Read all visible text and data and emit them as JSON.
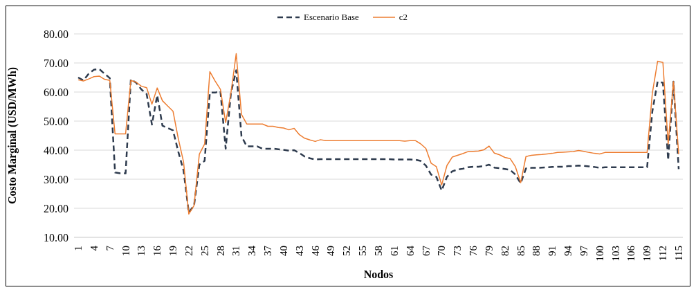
{
  "chart_data": {
    "type": "line",
    "xlabel": "Nodos",
    "ylabel": "Costo Marginal (USD/MWh)",
    "categories": [
      "1",
      null,
      null,
      "4",
      null,
      null,
      "7",
      null,
      null,
      "10",
      null,
      null,
      "13",
      null,
      null,
      "16",
      null,
      null,
      "19",
      null,
      null,
      "22",
      null,
      null,
      "25",
      null,
      null,
      "28",
      null,
      null,
      "31",
      null,
      null,
      "34",
      null,
      null,
      "37",
      null,
      null,
      "40",
      null,
      null,
      "43",
      null,
      null,
      "46",
      null,
      null,
      "49",
      null,
      null,
      "52",
      null,
      null,
      "55",
      null,
      null,
      "58",
      null,
      null,
      "61",
      null,
      null,
      "64",
      null,
      null,
      "67",
      null,
      null,
      "70",
      null,
      null,
      "73",
      null,
      null,
      "76",
      null,
      null,
      "79",
      null,
      null,
      "82",
      null,
      null,
      "85",
      null,
      null,
      "88",
      null,
      null,
      "91",
      null,
      null,
      "94",
      null,
      null,
      "97",
      null,
      null,
      "100",
      null,
      null,
      "103",
      null,
      null,
      "106",
      null,
      null,
      "109",
      null,
      null,
      "112",
      null,
      null,
      "115"
    ],
    "series": [
      {
        "name": "Escenario Base",
        "color": "#2e3b4e",
        "line_style": "dashed",
        "values": [
          65,
          64,
          66.3,
          67.7,
          67.9,
          66.3,
          64.8,
          32.3,
          32,
          32,
          64.4,
          63.2,
          60.9,
          59.3,
          48.8,
          58.9,
          48.4,
          47.6,
          46.8,
          39.5,
          33,
          18.5,
          21,
          35,
          36.3,
          59.8,
          59.8,
          60.3,
          40.5,
          59.7,
          67.5,
          44.8,
          41.3,
          41.3,
          41.3,
          40.5,
          40.5,
          40.5,
          40.3,
          40.1,
          39.8,
          40,
          39,
          37.8,
          37.2,
          36.8,
          36.9,
          36.9,
          36.9,
          36.9,
          36.9,
          36.9,
          36.9,
          36.9,
          36.9,
          36.9,
          36.9,
          36.9,
          36.9,
          36.9,
          36.8,
          36.8,
          36.8,
          36.8,
          36.7,
          36.3,
          34.7,
          31.6,
          30.8,
          26.1,
          30.8,
          32.7,
          33.3,
          33.6,
          34.1,
          34.3,
          34.3,
          34.5,
          35,
          34,
          33.8,
          33.5,
          33.2,
          31.6,
          28.6,
          33.7,
          33.9,
          33.9,
          34,
          34.1,
          34.2,
          34.3,
          34.3,
          34.5,
          34.5,
          34.7,
          34.6,
          34.4,
          34.2,
          33.9,
          34.1,
          34.1,
          34.1,
          34.1,
          34.1,
          34.1,
          34.1,
          34.1,
          34.1,
          53.4,
          63.6,
          63.2,
          36.6,
          63.6,
          33.5
        ]
      },
      {
        "name": "c2",
        "color": "#ed7d31",
        "line_style": "solid",
        "values": [
          64.2,
          63.8,
          64.5,
          65.3,
          65.5,
          64.4,
          64,
          45.6,
          45.6,
          45.6,
          64,
          63.4,
          62,
          61.5,
          55.8,
          61.4,
          57,
          55.2,
          53.4,
          44,
          36,
          18,
          21,
          38.6,
          42.1,
          67,
          63.8,
          60.9,
          49.5,
          59.7,
          73.2,
          52.3,
          49,
          49,
          49,
          49,
          48.2,
          48.2,
          47.8,
          47.6,
          47,
          47.5,
          45.3,
          44.1,
          43.5,
          43,
          43.6,
          43.3,
          43.3,
          43.3,
          43.3,
          43.3,
          43.3,
          43.3,
          43.3,
          43.3,
          43.3,
          43.3,
          43.3,
          43.3,
          43.3,
          43.3,
          43.1,
          43.3,
          43.3,
          42.2,
          40.6,
          35.5,
          34.3,
          28,
          34.7,
          37.6,
          38.2,
          38.8,
          39.5,
          39.6,
          39.7,
          40.1,
          41.4,
          39,
          38.4,
          37.5,
          37.1,
          34.3,
          28.8,
          37.8,
          38.2,
          38.4,
          38.5,
          38.7,
          38.9,
          39.2,
          39.3,
          39.4,
          39.5,
          39.9,
          39.6,
          39.2,
          38.9,
          38.7,
          39.2,
          39.2,
          39.2,
          39.2,
          39.2,
          39.2,
          39.2,
          39.2,
          39.2,
          59.7,
          70.6,
          70.2,
          42.1,
          63.6,
          38.6
        ]
      }
    ],
    "ylim": [
      10,
      80
    ],
    "yticks": [
      {
        "value": 10,
        "label": "10.00"
      },
      {
        "value": 20,
        "label": "20.00"
      },
      {
        "value": 30,
        "label": "30.00"
      },
      {
        "value": 40,
        "label": "40.00"
      },
      {
        "value": 50,
        "label": "50.00"
      },
      {
        "value": 60,
        "label": "60.00"
      },
      {
        "value": 70,
        "label": "70.00"
      },
      {
        "value": 80,
        "label": "80.00"
      }
    ],
    "grid": "y",
    "legend": "top",
    "marker": "none"
  }
}
